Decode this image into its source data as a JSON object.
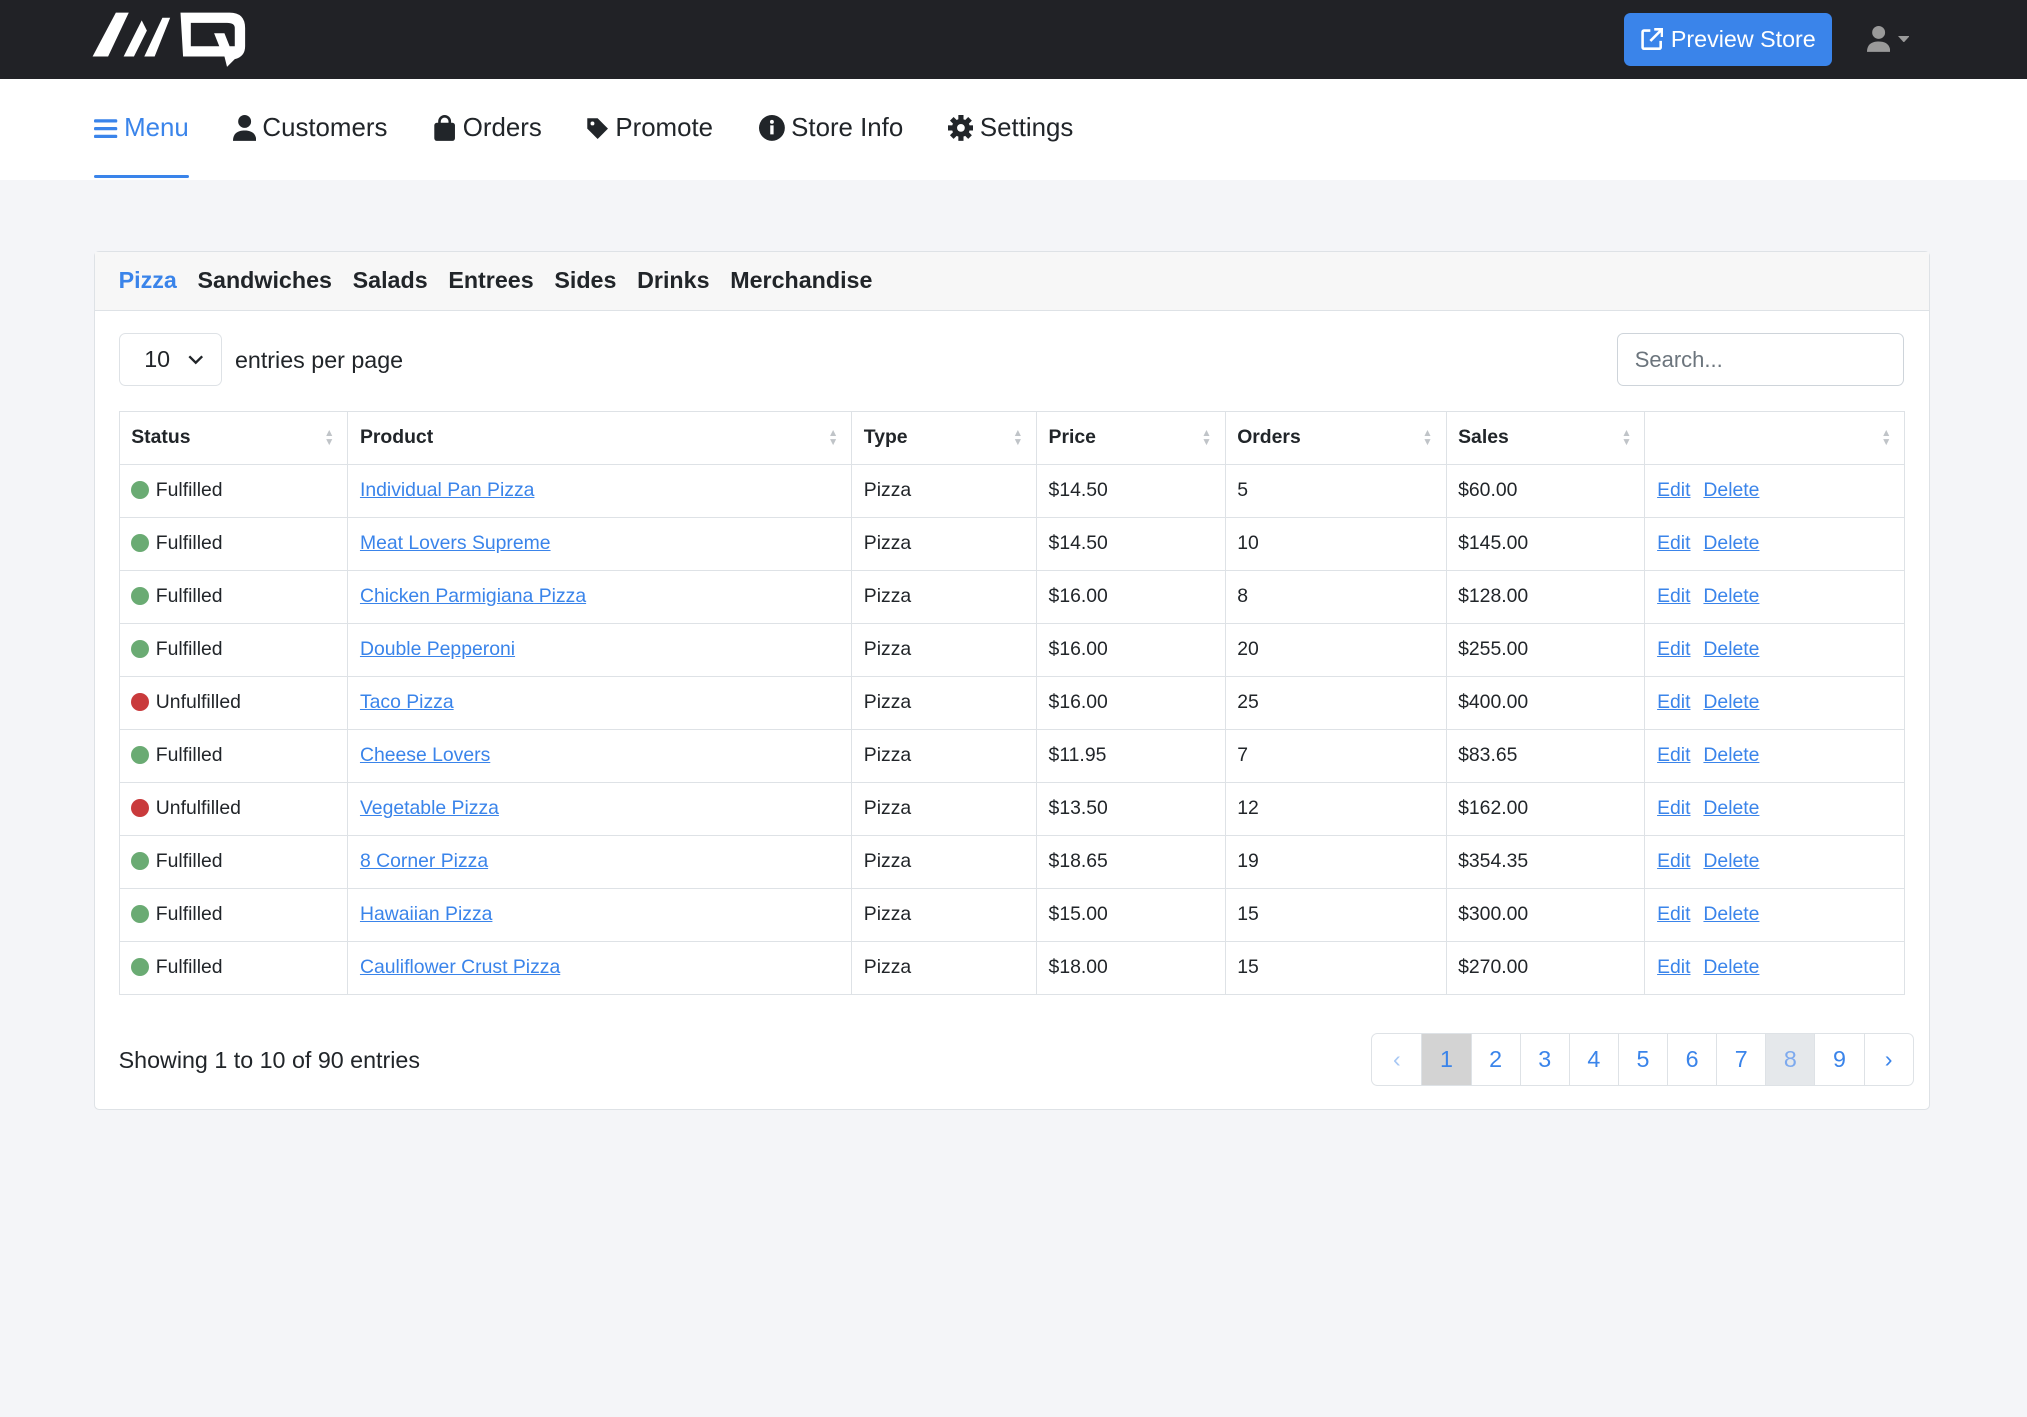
{
  "header": {
    "logo_text": "AQ",
    "preview_label": "Preview Store",
    "icons": {
      "preview": "external-link-icon",
      "user": "user-icon"
    }
  },
  "nav": {
    "items": [
      {
        "label": "Menu",
        "icon": "bars-icon",
        "active": true
      },
      {
        "label": "Customers",
        "icon": "user-icon"
      },
      {
        "label": "Orders",
        "icon": "shopping-bag-icon"
      },
      {
        "label": "Promote",
        "icon": "tag-icon"
      },
      {
        "label": "Store Info",
        "icon": "info-circle-icon"
      },
      {
        "label": "Settings",
        "icon": "gear-icon"
      }
    ]
  },
  "categories": [
    "Pizza",
    "Sandwiches",
    "Salads",
    "Entrees",
    "Sides",
    "Drinks",
    "Merchandise"
  ],
  "active_category": "Pizza",
  "controls": {
    "per_page_value": "10",
    "per_page_label": "entries per page",
    "search_placeholder": "Search..."
  },
  "table": {
    "columns": [
      "Status",
      "Product",
      "Type",
      "Price",
      "Orders",
      "Sales",
      ""
    ],
    "edit_label": "Edit",
    "delete_label": "Delete",
    "status_colors": {
      "Fulfilled": "#6aab73",
      "Unfulfilled": "#c93a3c"
    },
    "rows": [
      {
        "status": "Fulfilled",
        "product": "Individual Pan Pizza",
        "type": "Pizza",
        "price": "$14.50",
        "orders": "5",
        "sales": "$60.00"
      },
      {
        "status": "Fulfilled",
        "product": "Meat Lovers Supreme",
        "type": "Pizza",
        "price": "$14.50",
        "orders": "10",
        "sales": "$145.00"
      },
      {
        "status": "Fulfilled",
        "product": "Chicken Parmigiana Pizza",
        "type": "Pizza",
        "price": "$16.00",
        "orders": "8",
        "sales": "$128.00"
      },
      {
        "status": "Fulfilled",
        "product": "Double Pepperoni",
        "type": "Pizza",
        "price": "$16.00",
        "orders": "20",
        "sales": "$255.00"
      },
      {
        "status": "Unfulfilled",
        "product": "Taco Pizza",
        "type": "Pizza",
        "price": "$16.00",
        "orders": "25",
        "sales": "$400.00"
      },
      {
        "status": "Fulfilled",
        "product": "Cheese Lovers",
        "type": "Pizza",
        "price": "$11.95",
        "orders": "7",
        "sales": "$83.65"
      },
      {
        "status": "Unfulfilled",
        "product": "Vegetable Pizza",
        "type": "Pizza",
        "price": "$13.50",
        "orders": "12",
        "sales": "$162.00"
      },
      {
        "status": "Fulfilled",
        "product": "8 Corner Pizza",
        "type": "Pizza",
        "price": "$18.65",
        "orders": "19",
        "sales": "$354.35"
      },
      {
        "status": "Fulfilled",
        "product": "Hawaiian Pizza",
        "type": "Pizza",
        "price": "$15.00",
        "orders": "15",
        "sales": "$300.00"
      },
      {
        "status": "Fulfilled",
        "product": "Cauliflower Crust Pizza",
        "type": "Pizza",
        "price": "$18.00",
        "orders": "15",
        "sales": "$270.00"
      }
    ]
  },
  "footer": {
    "showing": "Showing 1 to 10 of 90 entries",
    "pages": [
      "‹",
      "1",
      "2",
      "3",
      "4",
      "5",
      "6",
      "7",
      "8",
      "9",
      "›"
    ],
    "current_page": "1"
  }
}
